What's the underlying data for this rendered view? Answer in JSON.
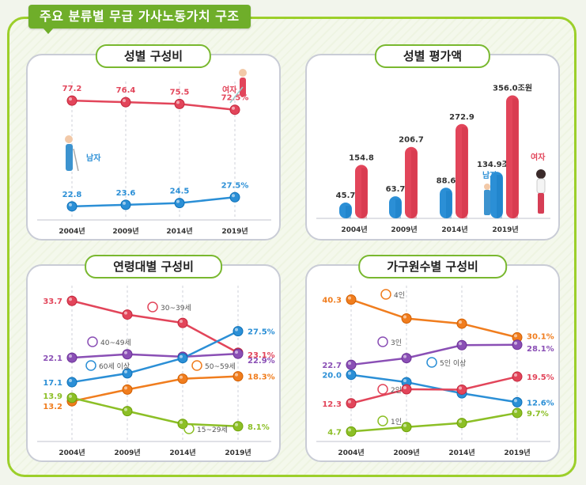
{
  "title": "주요 분류별 무급 가사노동가치 구조",
  "colors": {
    "frame_green": "#9ccf2a",
    "title_green": "#6fae2a",
    "red": "#e2455a",
    "blue": "#2b8fd6",
    "purple": "#8a4fb5",
    "orange": "#f07d1e",
    "green": "#8cbf26",
    "gray_text": "#333333"
  },
  "chart_data": [
    {
      "id": "gender-share",
      "type": "line",
      "title": "성별 구성비",
      "categories": [
        "2004년",
        "2009년",
        "2014년",
        "2019년"
      ],
      "ylim": [
        15,
        85
      ],
      "series": [
        {
          "name": "여자",
          "color": "#e2455a",
          "values": [
            77.2,
            76.4,
            75.5,
            72.5
          ],
          "labels": [
            "77.2",
            "76.4",
            "75.5",
            "72.5%"
          ]
        },
        {
          "name": "남자",
          "color": "#2b8fd6",
          "values": [
            22.8,
            23.6,
            24.5,
            27.5
          ],
          "labels": [
            "22.8",
            "23.6",
            "24.5",
            "27.5%"
          ]
        }
      ]
    },
    {
      "id": "gender-value",
      "type": "bar",
      "title": "성별 평가액",
      "unit": "조원",
      "categories": [
        "2004년",
        "2009년",
        "2014년",
        "2019년"
      ],
      "ylim": [
        0,
        380
      ],
      "series": [
        {
          "name": "남자",
          "color": "#2b8fd6",
          "values": [
            45.7,
            63.7,
            88.6,
            134.9
          ],
          "labels": [
            "45.7",
            "63.7",
            "88.6",
            "134.9조원"
          ]
        },
        {
          "name": "여자",
          "color": "#e2455a",
          "values": [
            154.8,
            206.7,
            272.9,
            356.0
          ],
          "labels": [
            "154.8",
            "206.7",
            "272.9",
            "356.0조원"
          ]
        }
      ]
    },
    {
      "id": "age-share",
      "type": "line",
      "title": "연령대별 구성비",
      "categories": [
        "2004년",
        "2009년",
        "2014년",
        "2019년"
      ],
      "ylim": [
        5,
        36
      ],
      "series": [
        {
          "name": "30~39세",
          "color": "#e2455a",
          "values": [
            33.7,
            30.9,
            29.2,
            23.1
          ],
          "labels": [
            "33.7",
            "",
            "",
            "23.1%"
          ]
        },
        {
          "name": "40~49세",
          "color": "#8a4fb5",
          "values": [
            22.1,
            22.8,
            22.3,
            22.9
          ],
          "labels": [
            "22.1",
            "",
            "",
            "22.9%"
          ]
        },
        {
          "name": "60세 이상",
          "color": "#2b8fd6",
          "values": [
            17.1,
            18.9,
            22.0,
            27.5
          ],
          "labels": [
            "17.1",
            "",
            "",
            "27.5%"
          ]
        },
        {
          "name": "50~59세",
          "color": "#f07d1e",
          "values": [
            13.2,
            15.6,
            17.8,
            18.3
          ],
          "labels": [
            "13.2",
            "",
            "",
            "18.3%"
          ]
        },
        {
          "name": "15~29세",
          "color": "#8cbf26",
          "values": [
            13.9,
            11.2,
            8.6,
            8.1
          ],
          "labels": [
            "13.9",
            "",
            "",
            "8.1%"
          ]
        }
      ]
    },
    {
      "id": "household-share",
      "type": "line",
      "title": "가구원수별 구성비",
      "categories": [
        "2004년",
        "2009년",
        "2014년",
        "2019년"
      ],
      "ylim": [
        2,
        43
      ],
      "series": [
        {
          "name": "4인",
          "color": "#f07d1e",
          "values": [
            40.3,
            35.2,
            33.8,
            30.1
          ],
          "labels": [
            "40.3",
            "",
            "",
            "30.1%"
          ]
        },
        {
          "name": "3인",
          "color": "#8a4fb5",
          "values": [
            22.7,
            24.5,
            28.0,
            28.1
          ],
          "labels": [
            "22.7",
            "",
            "",
            "28.1%"
          ]
        },
        {
          "name": "5인 이상",
          "color": "#2b8fd6",
          "values": [
            20.0,
            18.0,
            15.0,
            12.6
          ],
          "labels": [
            "20.0",
            "",
            "",
            "12.6%"
          ]
        },
        {
          "name": "2인",
          "color": "#e2455a",
          "values": [
            12.3,
            16.1,
            16.0,
            19.5
          ],
          "labels": [
            "12.3",
            "",
            "",
            "19.5%"
          ]
        },
        {
          "name": "1인",
          "color": "#8cbf26",
          "values": [
            4.7,
            5.9,
            7.0,
            9.7
          ],
          "labels": [
            "4.7",
            "",
            "",
            "9.7%"
          ]
        }
      ]
    }
  ]
}
